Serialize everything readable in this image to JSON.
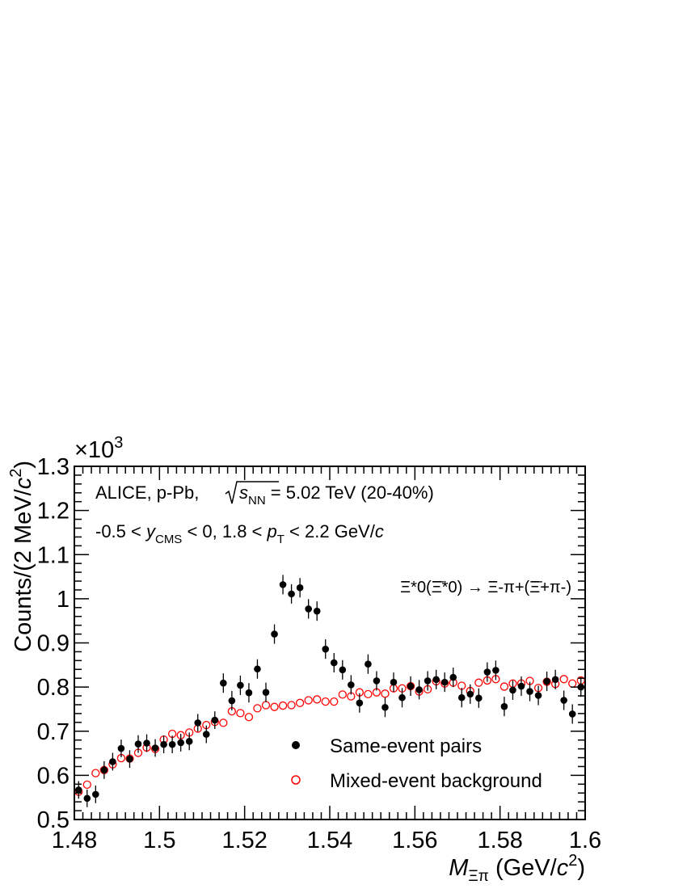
{
  "chart_data": {
    "type": "scatter",
    "title": "",
    "annotations": {
      "line1_a": "ALICE, p-Pb, ",
      "line1_b": "s",
      "line1_c": "NN",
      "line1_d": " = 5.02 TeV (20-40%)",
      "line2_a": "-0.5 < ",
      "line2_b": "y",
      "line2_c": "CMS",
      "line2_d": " < 0, 1.8 < ",
      "line2_e": "p",
      "line2_f": "T",
      "line2_g": " < 2.2 GeV/",
      "line2_h": "c",
      "decay": "Ξ*0(Ξ̄*0) → Ξ-π+(Ξ̄+π-)"
    },
    "xlabel": {
      "main": "M",
      "sub": "Ξπ",
      "unit": " (GeV/",
      "c": "c",
      "sup": "2",
      "close": ")"
    },
    "ylabel": {
      "main": "Counts/(2 MeV/",
      "c": "c",
      "sup": "2",
      "close": ")"
    },
    "y_multiplier": {
      "base": "×10",
      "exp": "3"
    },
    "xlim": [
      1.48,
      1.6
    ],
    "ylim": [
      0.5,
      1.3
    ],
    "x_ticks": [
      "1.48",
      "1.5",
      "1.52",
      "1.54",
      "1.56",
      "1.58",
      "1.6"
    ],
    "y_ticks": [
      "0.5",
      "0.6",
      "0.7",
      "0.8",
      "0.9",
      "1",
      "1.1",
      "1.2",
      "1.3"
    ],
    "legend": {
      "placement": "bottom-right",
      "items": [
        "Same-event pairs",
        "Mixed-event background"
      ]
    },
    "series": [
      {
        "name": "Same-event pairs",
        "marker": "filled-circle",
        "color": "#000000",
        "x": [
          1.481,
          1.483,
          1.485,
          1.487,
          1.489,
          1.491,
          1.493,
          1.495,
          1.497,
          1.499,
          1.501,
          1.503,
          1.505,
          1.507,
          1.509,
          1.511,
          1.513,
          1.515,
          1.517,
          1.519,
          1.521,
          1.523,
          1.525,
          1.527,
          1.529,
          1.531,
          1.533,
          1.535,
          1.537,
          1.539,
          1.541,
          1.543,
          1.545,
          1.547,
          1.549,
          1.551,
          1.553,
          1.555,
          1.557,
          1.559,
          1.561,
          1.563,
          1.565,
          1.567,
          1.569,
          1.571,
          1.573,
          1.575,
          1.577,
          1.579,
          1.581,
          1.583,
          1.585,
          1.587,
          1.589,
          1.591,
          1.593,
          1.595,
          1.597,
          1.599
        ],
        "y": [
          0.567,
          0.548,
          0.557,
          0.612,
          0.631,
          0.661,
          0.637,
          0.671,
          0.673,
          0.662,
          0.67,
          0.67,
          0.674,
          0.677,
          0.719,
          0.693,
          0.725,
          0.809,
          0.769,
          0.804,
          0.787,
          0.841,
          0.788,
          0.92,
          1.032,
          1.011,
          1.025,
          0.977,
          0.972,
          0.886,
          0.855,
          0.839,
          0.805,
          0.764,
          0.852,
          0.814,
          0.754,
          0.811,
          0.776,
          0.802,
          0.794,
          0.814,
          0.817,
          0.811,
          0.822,
          0.776,
          0.784,
          0.775,
          0.834,
          0.838,
          0.756,
          0.793,
          0.802,
          0.79,
          0.781,
          0.813,
          0.817,
          0.77,
          0.739,
          0.8
        ],
        "err": [
          0.02,
          0.02,
          0.02,
          0.02,
          0.02,
          0.02,
          0.02,
          0.02,
          0.02,
          0.02,
          0.02,
          0.02,
          0.02,
          0.02,
          0.02,
          0.02,
          0.02,
          0.022,
          0.022,
          0.022,
          0.022,
          0.022,
          0.022,
          0.022,
          0.022,
          0.022,
          0.022,
          0.022,
          0.022,
          0.022,
          0.022,
          0.022,
          0.022,
          0.022,
          0.022,
          0.022,
          0.022,
          0.022,
          0.022,
          0.022,
          0.022,
          0.022,
          0.022,
          0.022,
          0.022,
          0.022,
          0.022,
          0.022,
          0.022,
          0.022,
          0.022,
          0.022,
          0.022,
          0.022,
          0.022,
          0.022,
          0.022,
          0.022,
          0.022,
          0.022
        ]
      },
      {
        "name": "Mixed-event background",
        "marker": "open-circle",
        "color": "#ff0000",
        "x": [
          1.481,
          1.483,
          1.485,
          1.487,
          1.489,
          1.491,
          1.493,
          1.495,
          1.497,
          1.499,
          1.501,
          1.503,
          1.505,
          1.507,
          1.509,
          1.511,
          1.513,
          1.515,
          1.517,
          1.519,
          1.521,
          1.523,
          1.525,
          1.527,
          1.529,
          1.531,
          1.533,
          1.535,
          1.537,
          1.539,
          1.541,
          1.543,
          1.545,
          1.547,
          1.549,
          1.551,
          1.553,
          1.555,
          1.557,
          1.559,
          1.561,
          1.563,
          1.565,
          1.567,
          1.569,
          1.571,
          1.573,
          1.575,
          1.577,
          1.579,
          1.581,
          1.583,
          1.585,
          1.587,
          1.589,
          1.591,
          1.593,
          1.595,
          1.597,
          1.599
        ],
        "y": [
          0.563,
          0.579,
          0.605,
          0.612,
          0.625,
          0.639,
          0.638,
          0.651,
          0.663,
          0.66,
          0.681,
          0.694,
          0.691,
          0.697,
          0.706,
          0.714,
          0.721,
          0.719,
          0.745,
          0.741,
          0.732,
          0.752,
          0.759,
          0.755,
          0.758,
          0.759,
          0.764,
          0.77,
          0.772,
          0.767,
          0.767,
          0.783,
          0.779,
          0.788,
          0.784,
          0.788,
          0.785,
          0.797,
          0.797,
          0.802,
          0.79,
          0.795,
          0.813,
          0.808,
          0.81,
          0.803,
          0.791,
          0.81,
          0.815,
          0.818,
          0.801,
          0.808,
          0.808,
          0.814,
          0.798,
          0.812,
          0.807,
          0.818,
          0.808,
          0.815
        ]
      }
    ]
  }
}
